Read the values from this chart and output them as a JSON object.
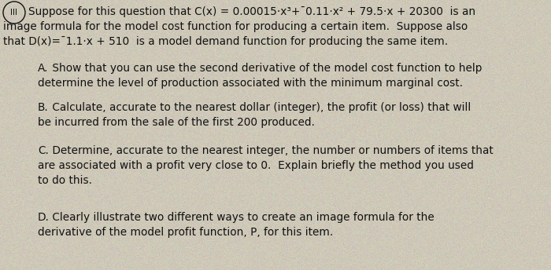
{
  "background_color": "#cec8b8",
  "text_color": "#111111",
  "circle_label": "III",
  "line1": "Suppose for this question that C(x) = 0.00015·x³+¯0.11·x² + 79.5·x + 20300  is an",
  "line2": "image formula for the model cost function for producing a certain item.  Suppose also",
  "line3": "that D(x)=¯1.1·x + 510  is a model demand function for producing the same item.",
  "section_A_label": "A.",
  "section_A_line1": " Show that you can use the second derivative of the model cost function to help",
  "section_A_line2": "determine the level of production associated with the minimum marginal cost.",
  "section_B_label": "B.",
  "section_B_line1": " Calculate, accurate to the nearest dollar (integer), the profit (or loss) that will",
  "section_B_line2": "be incurred from the sale of the first 200 produced.",
  "section_C_label": "C.",
  "section_C_line1": " Determine, accurate to the nearest integer, the number or numbers of items that",
  "section_C_line2": "are associated with a profit very close to 0.  Explain briefly the method you used",
  "section_C_line3": "to do this.",
  "section_D_label": "D.",
  "section_D_line1": " Clearly illustrate two different ways to create an image formula for the",
  "section_D_line2": "derivative of the model profit function, P, for this item.",
  "font_size": 9.8,
  "font_family": "DejaVu Sans"
}
